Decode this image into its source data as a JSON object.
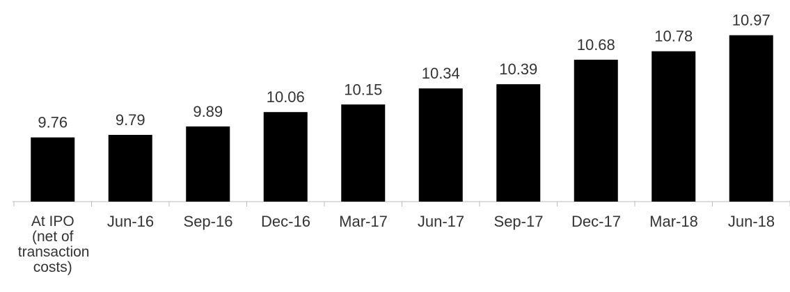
{
  "chart_data": {
    "type": "bar",
    "categories": [
      "At IPO (net of transaction costs)",
      "Jun-16",
      "Sep-16",
      "Dec-16",
      "Mar-17",
      "Jun-17",
      "Sep-17",
      "Dec-17",
      "Mar-18",
      "Jun-18"
    ],
    "values": [
      9.76,
      9.79,
      9.89,
      10.06,
      10.15,
      10.34,
      10.39,
      10.68,
      10.78,
      10.97
    ],
    "color": "#000000",
    "ylim": [
      9,
      11.2
    ]
  }
}
